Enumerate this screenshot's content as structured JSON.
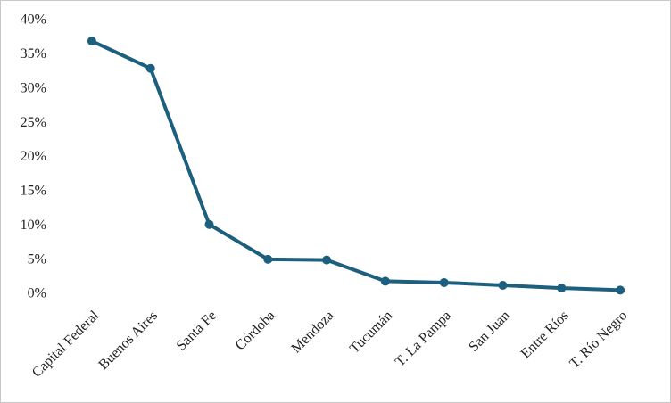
{
  "chart_data": {
    "type": "line",
    "categories": [
      "Capital Federal",
      "Buenos Aires",
      "Santa Fe",
      "Córdoba",
      "Mendoza",
      "Tucumán",
      "T. La Pampa",
      "San Juan",
      "Entre Ríos",
      "T. Río Negro"
    ],
    "values": [
      37,
      33,
      10.2,
      5.1,
      5.0,
      1.9,
      1.7,
      1.3,
      0.9,
      0.6
    ],
    "color": "#1d5f7e",
    "ylim": [
      0,
      40
    ],
    "yticks": [
      {
        "value": 0,
        "label": "0%"
      },
      {
        "value": 5,
        "label": "5%"
      },
      {
        "value": 10,
        "label": "10%"
      },
      {
        "value": 15,
        "label": "15%"
      },
      {
        "value": 20,
        "label": "20%"
      },
      {
        "value": 25,
        "label": "25%"
      },
      {
        "value": 30,
        "label": "30%"
      },
      {
        "value": 35,
        "label": "35%"
      },
      {
        "value": 40,
        "label": "40%"
      }
    ],
    "grid": false
  }
}
